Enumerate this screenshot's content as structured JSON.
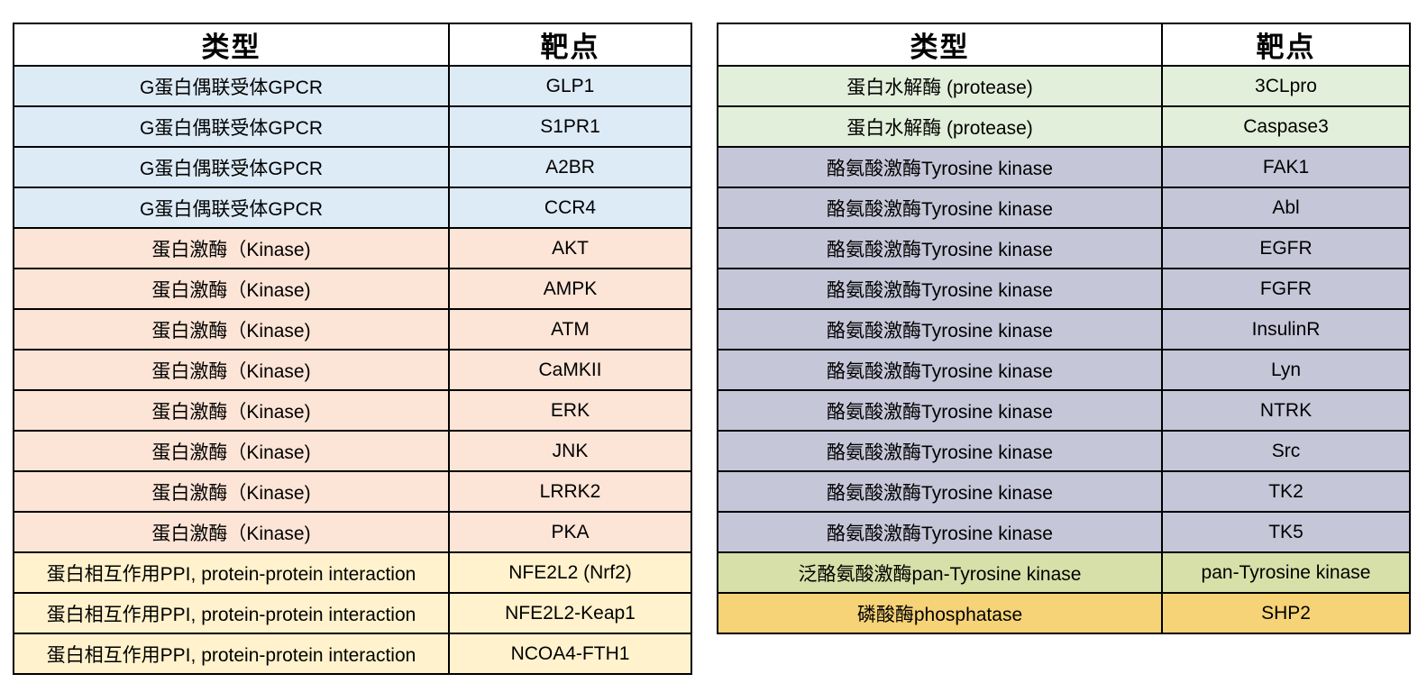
{
  "colors": {
    "gpcr": "#DDEBF7",
    "kinase": "#FCE4D6",
    "ppi": "#FFF2CC",
    "protease": "#E2EFDA",
    "tyrosine_kinase": "#C6C6D9",
    "pan_tyrosine_kinase": "#D6E0A8",
    "phosphatase": "#F5D376",
    "border": "#000000",
    "header_background": "#FFFFFF",
    "text": "#000000"
  },
  "chart_data": [
    {
      "type": "table",
      "name": "left-target-table",
      "columns": [
        "类型",
        "靶点"
      ],
      "rows": [
        {
          "type": "G蛋白偶联受体GPCR",
          "target": "GLP1",
          "category": "gpcr"
        },
        {
          "type": "G蛋白偶联受体GPCR",
          "target": "S1PR1",
          "category": "gpcr"
        },
        {
          "type": "G蛋白偶联受体GPCR",
          "target": "A2BR",
          "category": "gpcr"
        },
        {
          "type": "G蛋白偶联受体GPCR",
          "target": "CCR4",
          "category": "gpcr"
        },
        {
          "type": "蛋白激酶（Kinase)",
          "target": "AKT",
          "category": "kinase"
        },
        {
          "type": "蛋白激酶（Kinase)",
          "target": "AMPK",
          "category": "kinase"
        },
        {
          "type": "蛋白激酶（Kinase)",
          "target": "ATM",
          "category": "kinase"
        },
        {
          "type": "蛋白激酶（Kinase)",
          "target": "CaMKII",
          "category": "kinase"
        },
        {
          "type": "蛋白激酶（Kinase)",
          "target": "ERK",
          "category": "kinase"
        },
        {
          "type": "蛋白激酶（Kinase)",
          "target": "JNK",
          "category": "kinase"
        },
        {
          "type": "蛋白激酶（Kinase)",
          "target": "LRRK2",
          "category": "kinase"
        },
        {
          "type": "蛋白激酶（Kinase)",
          "target": "PKA",
          "category": "kinase"
        },
        {
          "type": "蛋白相互作用PPI, protein-protein interaction",
          "target": "NFE2L2 (Nrf2)",
          "category": "ppi"
        },
        {
          "type": "蛋白相互作用PPI, protein-protein interaction",
          "target": "NFE2L2-Keap1",
          "category": "ppi"
        },
        {
          "type": "蛋白相互作用PPI, protein-protein interaction",
          "target": "NCOA4-FTH1",
          "category": "ppi"
        }
      ]
    },
    {
      "type": "table",
      "name": "right-target-table",
      "columns": [
        "类型",
        "靶点"
      ],
      "rows": [
        {
          "type": "蛋白水解酶 (protease)",
          "target": "3CLpro",
          "category": "protease"
        },
        {
          "type": "蛋白水解酶 (protease)",
          "target": "Caspase3",
          "category": "protease"
        },
        {
          "type": "酪氨酸激酶Tyrosine kinase",
          "target": "FAK1",
          "category": "tyrosine_kinase"
        },
        {
          "type": "酪氨酸激酶Tyrosine kinase",
          "target": "Abl",
          "category": "tyrosine_kinase"
        },
        {
          "type": "酪氨酸激酶Tyrosine kinase",
          "target": "EGFR",
          "category": "tyrosine_kinase"
        },
        {
          "type": "酪氨酸激酶Tyrosine kinase",
          "target": "FGFR",
          "category": "tyrosine_kinase"
        },
        {
          "type": "酪氨酸激酶Tyrosine kinase",
          "target": "InsulinR",
          "category": "tyrosine_kinase"
        },
        {
          "type": "酪氨酸激酶Tyrosine kinase",
          "target": "Lyn",
          "category": "tyrosine_kinase"
        },
        {
          "type": "酪氨酸激酶Tyrosine kinase",
          "target": "NTRK",
          "category": "tyrosine_kinase"
        },
        {
          "type": "酪氨酸激酶Tyrosine kinase",
          "target": "Src",
          "category": "tyrosine_kinase"
        },
        {
          "type": "酪氨酸激酶Tyrosine kinase",
          "target": "TK2",
          "category": "tyrosine_kinase"
        },
        {
          "type": "酪氨酸激酶Tyrosine kinase",
          "target": "TK5",
          "category": "tyrosine_kinase"
        },
        {
          "type": "泛酪氨酸激酶pan-Tyrosine kinase",
          "target": "pan-Tyrosine kinase",
          "category": "pan_tyrosine_kinase"
        },
        {
          "type": "磷酸酶phosphatase",
          "target": "SHP2",
          "category": "phosphatase"
        }
      ]
    }
  ]
}
